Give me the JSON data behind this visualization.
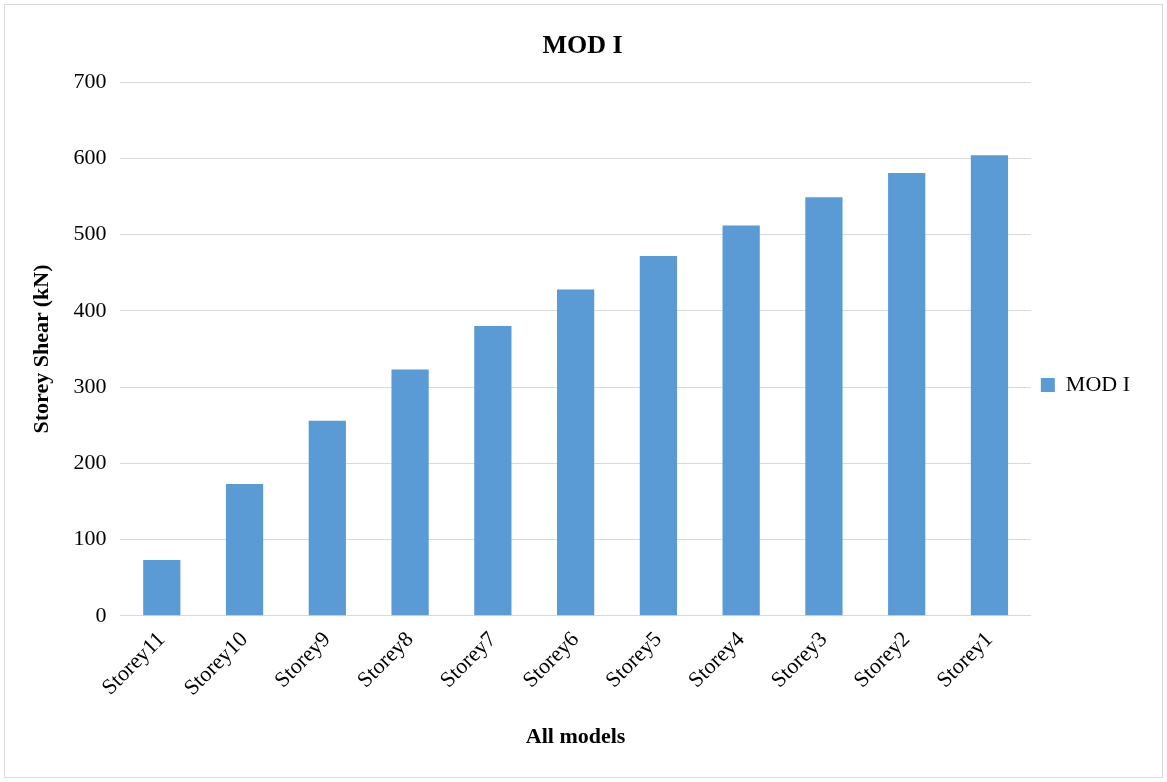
{
  "chart_data": {
    "type": "bar",
    "title": "MOD I",
    "xlabel": "All models",
    "ylabel": "Storey Shear (kN)",
    "categories": [
      "Storey11",
      "Storey10",
      "Storey9",
      "Storey8",
      "Storey7",
      "Storey6",
      "Storey5",
      "Storey4",
      "Storey3",
      "Storey2",
      "Storey1"
    ],
    "series": [
      {
        "name": "MOD I",
        "color": "#5b9bd5",
        "values": [
          73,
          173,
          256,
          323,
          380,
          428,
          472,
          512,
          549,
          581,
          604
        ]
      }
    ],
    "ylim": [
      0,
      700
    ],
    "yticks": [
      0,
      100,
      200,
      300,
      400,
      500,
      600,
      700
    ],
    "grid": "y",
    "legend": "right"
  }
}
